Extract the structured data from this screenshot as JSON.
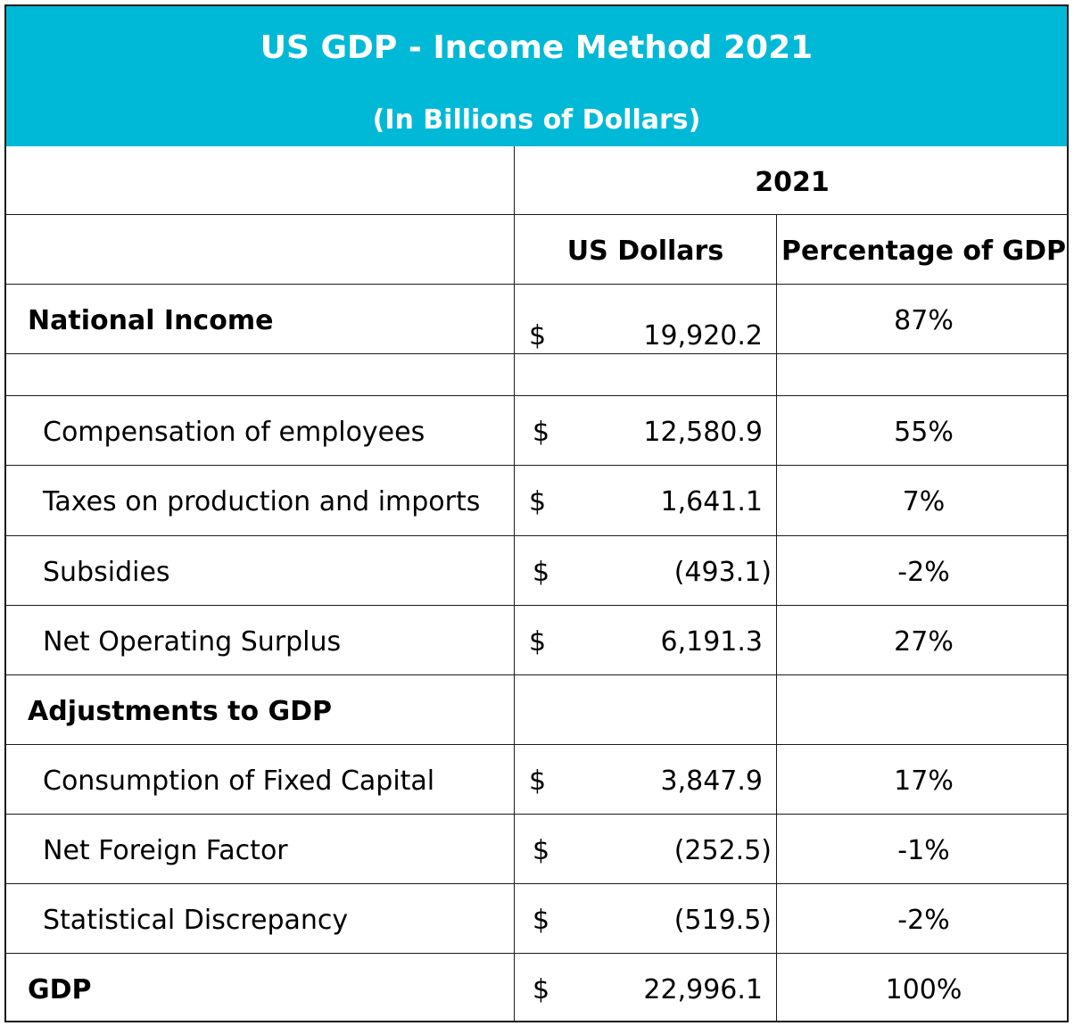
{
  "title": "US GDP - Income Method 2021",
  "subtitle": "(In Billions of Dollars)",
  "header": {
    "year": "2021",
    "col_usd": "US Dollars",
    "col_pct": "Percentage of GDP"
  },
  "currency_symbol": "$",
  "rows": [
    {
      "label": "National Income",
      "usd": "19,920.2",
      "pct": "87%"
    },
    {
      "label": "Compensation of employees",
      "usd": "12,580.9",
      "pct": "55%"
    },
    {
      "label": "Taxes on production and imports",
      "usd": "1,641.1",
      "pct": "7%"
    },
    {
      "label": "Subsidies",
      "usd": "(493.1)",
      "pct": "-2%"
    },
    {
      "label": "Net Operating Surplus",
      "usd": "6,191.3",
      "pct": "27%"
    },
    {
      "label": "Adjustments to GDP"
    },
    {
      "label": "Consumption of Fixed Capital",
      "usd": "3,847.9",
      "pct": "17%"
    },
    {
      "label": "Net Foreign Factor",
      "usd": "(252.5)",
      "pct": "-1%"
    },
    {
      "label": "Statistical Discrepancy",
      "usd": "(519.5)",
      "pct": "-2%"
    },
    {
      "label": "GDP",
      "usd": "22,996.1",
      "pct": "100%"
    }
  ],
  "colors": {
    "header_bg": "#00b9d7",
    "header_text": "#ffffff",
    "grid": "#1a1a1a"
  }
}
